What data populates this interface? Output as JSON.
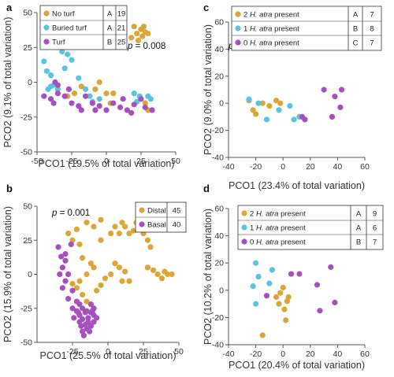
{
  "colors": {
    "gold": "#d9a637",
    "cyan": "#59c3e0",
    "purple": "#a64fbd",
    "axis": "#555555"
  },
  "chart_data": [
    {
      "panel": "a",
      "type": "scatter",
      "xlabel": "PCO1 (19.5% of total variation)",
      "ylabel": "PCO2 (9.1% of total variation)",
      "xlim": [
        -50,
        50
      ],
      "ylim": [
        -50,
        50
      ],
      "xticks": [
        -50,
        -25,
        0,
        25,
        50
      ],
      "yticks": [
        -50,
        -25,
        0,
        25,
        50
      ],
      "pvalue": {
        "prefix": "p",
        "text": " = 0.008"
      },
      "legend_position": "top-left",
      "series": [
        {
          "name": "No turf",
          "group": "A",
          "count": "19",
          "color": "#d9a637",
          "points": [
            [
              20,
              40
            ],
            [
              22,
              35
            ],
            [
              25,
              38
            ],
            [
              28,
              36
            ],
            [
              30,
              35
            ],
            [
              27,
              40
            ],
            [
              26,
              33
            ],
            [
              18,
              32
            ],
            [
              23,
              30
            ],
            [
              -5,
              0
            ],
            [
              -8,
              -5
            ],
            [
              0,
              -8
            ],
            [
              5,
              -8
            ],
            [
              3,
              -15
            ],
            [
              -18,
              -3
            ],
            [
              -23,
              -8
            ],
            [
              28,
              -15
            ],
            [
              30,
              -20
            ],
            [
              -28,
              -10
            ]
          ]
        },
        {
          "name": "Buried turf",
          "group": "A",
          "count": "21",
          "color": "#59c3e0",
          "points": [
            [
              -45,
              15
            ],
            [
              -43,
              8
            ],
            [
              -40,
              5
            ],
            [
              -38,
              -2
            ],
            [
              -35,
              -5
            ],
            [
              -32,
              22
            ],
            [
              -28,
              20
            ],
            [
              -25,
              16
            ],
            [
              -30,
              10
            ],
            [
              -20,
              3
            ],
            [
              -15,
              -5
            ],
            [
              -12,
              -10
            ],
            [
              -10,
              -14
            ],
            [
              -5,
              -12
            ],
            [
              -40,
              -3
            ],
            [
              20,
              -8
            ],
            [
              22,
              -14
            ],
            [
              24,
              -10
            ],
            [
              30,
              -10
            ],
            [
              32,
              -12
            ],
            [
              -42,
              -5
            ]
          ]
        },
        {
          "name": "Turf",
          "group": "B",
          "count": "25",
          "color": "#a64fbd",
          "points": [
            [
              -45,
              -10
            ],
            [
              -40,
              -12
            ],
            [
              -35,
              -8
            ],
            [
              -30,
              -10
            ],
            [
              -25,
              -15
            ],
            [
              -20,
              -17
            ],
            [
              -15,
              -10
            ],
            [
              -10,
              -15
            ],
            [
              -5,
              -17
            ],
            [
              0,
              -20
            ],
            [
              5,
              -15
            ],
            [
              10,
              -18
            ],
            [
              15,
              -20
            ],
            [
              20,
              -16
            ],
            [
              25,
              -12
            ],
            [
              28,
              -18
            ],
            [
              33,
              -20
            ],
            [
              -38,
              -15
            ],
            [
              -18,
              -20
            ],
            [
              -8,
              -20
            ],
            [
              12,
              -12
            ],
            [
              18,
              -22
            ],
            [
              -35,
              -2
            ],
            [
              -27,
              -5
            ],
            [
              -37,
              0
            ]
          ]
        }
      ]
    },
    {
      "panel": "b",
      "type": "scatter",
      "xlabel": "PCO1 (25.5% of total variation)",
      "ylabel": "PCO2 (15.9% of total variation)",
      "xlim": [
        -50,
        50
      ],
      "ylim": [
        -50,
        50
      ],
      "xticks": [
        -25,
        0,
        25,
        50
      ],
      "yticks": [
        -50,
        -25,
        0,
        25,
        50
      ],
      "pvalue": {
        "prefix": "p",
        "text": " = 0.001"
      },
      "legend_position": "top-right",
      "series": [
        {
          "name": "Distal",
          "count": "45",
          "color": "#d9a637",
          "points": [
            [
              -15,
              38
            ],
            [
              -10,
              35
            ],
            [
              -5,
              40
            ],
            [
              -22,
              33
            ],
            [
              -28,
              30
            ],
            [
              -25,
              25
            ],
            [
              -20,
              22
            ],
            [
              -18,
              12
            ],
            [
              -12,
              8
            ],
            [
              -10,
              5
            ],
            [
              -15,
              0
            ],
            [
              -20,
              -5
            ],
            [
              -25,
              -7
            ],
            [
              -22,
              -10
            ],
            [
              -18,
              -15
            ],
            [
              -15,
              -20
            ],
            [
              -8,
              -12
            ],
            [
              -5,
              -8
            ],
            [
              -2,
              -3
            ],
            [
              2,
              0
            ],
            [
              5,
              8
            ],
            [
              8,
              5
            ],
            [
              12,
              2
            ],
            [
              10,
              -5
            ],
            [
              15,
              -5
            ],
            [
              -5,
              25
            ],
            [
              2,
              30
            ],
            [
              5,
              35
            ],
            [
              8,
              30
            ],
            [
              10,
              38
            ],
            [
              12,
              35
            ],
            [
              15,
              30
            ],
            [
              18,
              32
            ],
            [
              20,
              38
            ],
            [
              22,
              36
            ],
            [
              25,
              30
            ],
            [
              28,
              25
            ],
            [
              30,
              20
            ],
            [
              28,
              5
            ],
            [
              32,
              3
            ],
            [
              35,
              0
            ],
            [
              38,
              -3
            ],
            [
              40,
              2
            ],
            [
              42,
              0
            ],
            [
              45,
              0
            ]
          ]
        },
        {
          "name": "Basal",
          "count": "40",
          "color": "#a64fbd",
          "points": [
            [
              -35,
              20
            ],
            [
              -33,
              13
            ],
            [
              -30,
              10
            ],
            [
              -32,
              5
            ],
            [
              -28,
              0
            ],
            [
              -30,
              -5
            ],
            [
              -25,
              -12
            ],
            [
              -22,
              -20
            ],
            [
              -20,
              -22
            ],
            [
              -18,
              -25
            ],
            [
              -15,
              -27
            ],
            [
              -12,
              -28
            ],
            [
              -10,
              -30
            ],
            [
              -14,
              -32
            ],
            [
              -18,
              -33
            ],
            [
              -20,
              -35
            ],
            [
              -16,
              -37
            ],
            [
              -12,
              -38
            ],
            [
              -15,
              -40
            ],
            [
              -18,
              -42
            ],
            [
              -10,
              -35
            ],
            [
              -8,
              -32
            ],
            [
              -20,
              -30
            ],
            [
              -22,
              -27
            ],
            [
              -25,
              -25
            ],
            [
              -28,
              -18
            ],
            [
              -32,
              -10
            ],
            [
              -34,
              0
            ],
            [
              -30,
              15
            ],
            [
              -26,
              22
            ],
            [
              -12,
              -22
            ],
            [
              -10,
              -25
            ],
            [
              -16,
              -28
            ],
            [
              -14,
              -35
            ],
            [
              -19,
              -38
            ],
            [
              -17,
              -45
            ],
            [
              -13,
              -42
            ],
            [
              -11,
              -27
            ],
            [
              -21,
              -28
            ],
            [
              -24,
              -32
            ]
          ]
        }
      ]
    },
    {
      "panel": "c",
      "type": "scatter",
      "xlabel": "PCO1 (23.4% of total variation)",
      "ylabel": "PCO2 (9.0% of total variation)",
      "xlim": [
        -40,
        60
      ],
      "ylim": [
        -40,
        60
      ],
      "xticks": [
        -40,
        -20,
        0,
        20,
        40,
        60
      ],
      "yticks": [
        -40,
        -20,
        0,
        20,
        40,
        60
      ],
      "pvalue": {
        "prefix": "p",
        "text": " = 0.001"
      },
      "legend_position": "top-right",
      "series": [
        {
          "italic": "H. atra",
          "pre": "2 ",
          "post": " present",
          "group": "A",
          "count": "7",
          "color": "#d9a637",
          "points": [
            [
              -25,
              2
            ],
            [
              -22,
              -5
            ],
            [
              -20,
              -8
            ],
            [
              -15,
              0
            ],
            [
              -10,
              -2
            ],
            [
              -5,
              2
            ],
            [
              -2,
              0
            ]
          ]
        },
        {
          "italic": "H. atra",
          "pre": "1 ",
          "post": " present",
          "group": "B",
          "count": "8",
          "color": "#59c3e0",
          "points": [
            [
              0,
              55
            ],
            [
              -25,
              3
            ],
            [
              -18,
              0
            ],
            [
              -12,
              -12
            ],
            [
              -3,
              -5
            ],
            [
              5,
              -2
            ],
            [
              8,
              -12
            ],
            [
              12,
              -10
            ]
          ]
        },
        {
          "italic": "H. atra",
          "pre": "0 ",
          "post": " present",
          "group": "C",
          "count": "7",
          "color": "#a64fbd",
          "points": [
            [
              14,
              -10
            ],
            [
              16,
              -12
            ],
            [
              30,
              10
            ],
            [
              38,
              5
            ],
            [
              42,
              -3
            ],
            [
              43,
              10
            ],
            [
              36,
              -10
            ]
          ]
        }
      ]
    },
    {
      "panel": "d",
      "type": "scatter",
      "xlabel": "PCO1 (20.4% of total variation)",
      "ylabel": "PCO2 (10.2% of total variation)",
      "xlim": [
        -40,
        60
      ],
      "ylim": [
        -40,
        60
      ],
      "xticks": [
        -40,
        -20,
        0,
        20,
        40,
        60
      ],
      "yticks": [
        -40,
        -20,
        0,
        20,
        40,
        60
      ],
      "pvalue": {
        "prefix": "p",
        "text": " = 0.001"
      },
      "legend_position": "top-left",
      "series": [
        {
          "italic": "H. atra",
          "pre": "2 ",
          "post": " present",
          "group": "A",
          "count": "9",
          "color": "#d9a637",
          "points": [
            [
              -15,
              -33
            ],
            [
              -5,
              -5
            ],
            [
              -3,
              -10
            ],
            [
              0,
              2
            ],
            [
              2,
              -22
            ],
            [
              4,
              -5
            ],
            [
              -2,
              -2
            ],
            [
              1,
              -14
            ],
            [
              3,
              -8
            ]
          ]
        },
        {
          "italic": "H. atra",
          "pre": "1 ",
          "post": " present",
          "group": "A",
          "count": "6",
          "color": "#59c3e0",
          "points": [
            [
              -20,
              20
            ],
            [
              -22,
              3
            ],
            [
              -20,
              -10
            ],
            [
              -18,
              10
            ],
            [
              -10,
              5
            ],
            [
              -8,
              15
            ]
          ]
        },
        {
          "italic": "H. atra",
          "pre": "0 ",
          "post": " present",
          "group": "B",
          "count": "7",
          "color": "#a64fbd",
          "points": [
            [
              6,
              12
            ],
            [
              12,
              12
            ],
            [
              25,
              4
            ],
            [
              35,
              17
            ],
            [
              38,
              -9
            ],
            [
              27,
              -15
            ],
            [
              -12,
              -4
            ]
          ]
        }
      ]
    }
  ]
}
